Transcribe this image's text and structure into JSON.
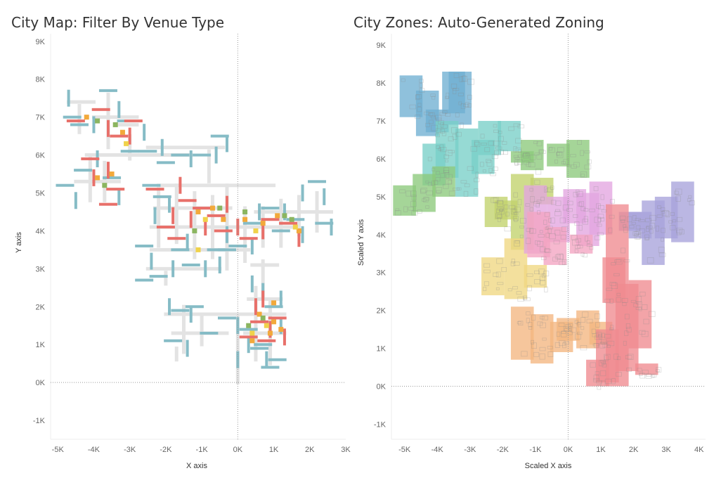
{
  "chart_data": [
    {
      "type": "scatter",
      "title": "City Map: Filter By Venue Type",
      "xlabel": "X axis",
      "ylabel": "Y axis",
      "xlim": [
        -5200,
        3000
      ],
      "ylim": [
        -1500,
        9200
      ],
      "x_ticks": [
        -5000,
        -4000,
        -3000,
        -2000,
        -1000,
        0,
        1000,
        2000,
        3000
      ],
      "x_tick_labels": [
        "-5K",
        "-4K",
        "-3K",
        "-2K",
        "-1K",
        "0K",
        "1K",
        "2K",
        "3K"
      ],
      "y_ticks": [
        9000,
        8000,
        7000,
        6000,
        5000,
        4000,
        3000,
        2000,
        1000,
        0,
        -1000
      ],
      "y_tick_labels": [
        "9K",
        "8K",
        "7K",
        "6K",
        "5K",
        "4K",
        "3K",
        "2K",
        "1K",
        "0K",
        "-1K"
      ],
      "reference_lines": {
        "x": 0,
        "y": 0
      },
      "grid": false,
      "colors": {
        "road": "#e3e3e3",
        "cyan": "#86bcc6",
        "red": "#e8706a",
        "orange": "#f2a93b",
        "green": "#8bb560",
        "yellow": "#f0d24a"
      },
      "series": [
        {
          "color": "cyan",
          "points": [
            [
              -4.7,
              7.5,
              "v"
            ],
            [
              -4.6,
              7.0,
              "h"
            ],
            [
              -4.4,
              6.8,
              "h"
            ],
            [
              -4.0,
              6.8,
              "v"
            ],
            [
              -3.6,
              7.7,
              "h"
            ],
            [
              -3.3,
              7.2,
              "v"
            ],
            [
              -3.1,
              6.9,
              "h"
            ],
            [
              -3.0,
              6.1,
              "h"
            ],
            [
              -2.6,
              6.6,
              "v"
            ],
            [
              -2.5,
              6.1,
              "h"
            ],
            [
              -2.1,
              6.2,
              "v"
            ],
            [
              -2.0,
              5.8,
              "h"
            ],
            [
              -1.6,
              6.0,
              "h"
            ],
            [
              -1.3,
              5.9,
              "v"
            ],
            [
              -1.0,
              6.0,
              "h"
            ],
            [
              -0.6,
              6.0,
              "v"
            ],
            [
              -0.5,
              6.5,
              "h"
            ],
            [
              -0.3,
              6.3,
              "v"
            ],
            [
              -4.8,
              5.2,
              "h"
            ],
            [
              -4.5,
              4.8,
              "v"
            ],
            [
              -4.3,
              5.6,
              "h"
            ],
            [
              -3.9,
              5.9,
              "v"
            ],
            [
              -3.5,
              5.4,
              "h"
            ],
            [
              -3.3,
              4.9,
              "v"
            ],
            [
              -2.4,
              5.2,
              "h"
            ],
            [
              -2.3,
              4.4,
              "v"
            ],
            [
              -2.1,
              4.9,
              "h"
            ],
            [
              -1.9,
              4.7,
              "v"
            ],
            [
              -2.6,
              3.6,
              "h"
            ],
            [
              -2.4,
              3.2,
              "v"
            ],
            [
              -2.2,
              2.8,
              "h"
            ],
            [
              -2.6,
              2.7,
              "h"
            ],
            [
              -1.8,
              3.0,
              "v"
            ],
            [
              -1.6,
              3.5,
              "h"
            ],
            [
              -1.4,
              3.7,
              "v"
            ],
            [
              -1.3,
              3.1,
              "h"
            ],
            [
              -0.9,
              3.0,
              "v"
            ],
            [
              -0.6,
              3.5,
              "h"
            ],
            [
              -0.5,
              3.1,
              "v"
            ],
            [
              -0.3,
              3.5,
              "h"
            ],
            [
              -0.3,
              3.9,
              "v"
            ],
            [
              0.0,
              3.6,
              "h"
            ],
            [
              0.4,
              3.6,
              "v"
            ],
            [
              0.4,
              4.2,
              "h"
            ],
            [
              0.6,
              4.5,
              "v"
            ],
            [
              0.9,
              4.6,
              "h"
            ],
            [
              1.3,
              4.5,
              "v"
            ],
            [
              1.2,
              4.0,
              "h"
            ],
            [
              1.8,
              3.9,
              "v"
            ],
            [
              1.6,
              4.3,
              "h"
            ],
            [
              1.8,
              5.0,
              "v"
            ],
            [
              2.2,
              5.3,
              "h"
            ],
            [
              2.4,
              4.9,
              "v"
            ],
            [
              2.4,
              4.2,
              "h"
            ],
            [
              2.6,
              4.1,
              "v"
            ],
            [
              -1.9,
              2.0,
              "v"
            ],
            [
              -1.6,
              1.9,
              "h"
            ],
            [
              -1.3,
              1.8,
              "v"
            ],
            [
              -1.2,
              2.0,
              "h"
            ],
            [
              -1.8,
              1.1,
              "h"
            ],
            [
              -1.4,
              0.9,
              "v"
            ],
            [
              -0.8,
              1.3,
              "h"
            ],
            [
              -0.3,
              1.7,
              "h"
            ],
            [
              0.0,
              1.5,
              "v"
            ],
            [
              0.3,
              1.4,
              "h"
            ],
            [
              0.3,
              1.0,
              "v"
            ],
            [
              0.0,
              0.6,
              "v"
            ],
            [
              0.6,
              0.9,
              "h"
            ],
            [
              0.8,
              0.6,
              "v"
            ],
            [
              0.7,
              1.0,
              "h"
            ],
            [
              1.1,
              0.6,
              "h"
            ],
            [
              1.2,
              1.5,
              "v"
            ],
            [
              0.9,
              0.4,
              "h"
            ],
            [
              0.4,
              2.6,
              "v"
            ],
            [
              0.7,
              2.4,
              "v"
            ],
            [
              1.0,
              2.0,
              "h"
            ],
            [
              1.2,
              2.2,
              "v"
            ]
          ]
        },
        {
          "color": "red",
          "points": [
            [
              -4.5,
              6.9,
              "h"
            ],
            [
              -3.8,
              7.2,
              "h"
            ],
            [
              -3.6,
              6.7,
              "v"
            ],
            [
              -3.3,
              6.5,
              "h"
            ],
            [
              -3.0,
              6.5,
              "v"
            ],
            [
              -2.9,
              6.9,
              "h"
            ],
            [
              -4.1,
              5.9,
              "h"
            ],
            [
              -4.0,
              5.4,
              "v"
            ],
            [
              -3.6,
              5.6,
              "v"
            ],
            [
              -3.4,
              5.1,
              "h"
            ],
            [
              -3.6,
              4.7,
              "h"
            ],
            [
              -2.3,
              5.1,
              "h"
            ],
            [
              -1.6,
              5.2,
              "v"
            ],
            [
              -1.4,
              4.8,
              "h"
            ],
            [
              -1.3,
              4.3,
              "v"
            ],
            [
              -1.0,
              4.6,
              "h"
            ],
            [
              -0.9,
              4.1,
              "v"
            ],
            [
              -0.6,
              4.4,
              "h"
            ],
            [
              -0.4,
              4.0,
              "h"
            ],
            [
              -0.3,
              4.7,
              "v"
            ],
            [
              -1.8,
              4.4,
              "v"
            ],
            [
              -2.0,
              4.1,
              "h"
            ],
            [
              -1.7,
              3.8,
              "h"
            ],
            [
              0.0,
              4.1,
              "v"
            ],
            [
              0.3,
              3.8,
              "h"
            ],
            [
              0.7,
              4.0,
              "v"
            ],
            [
              0.9,
              4.3,
              "h"
            ],
            [
              1.4,
              4.2,
              "h"
            ],
            [
              1.7,
              3.8,
              "v"
            ],
            [
              0.5,
              2.0,
              "v"
            ],
            [
              0.6,
              1.6,
              "h"
            ],
            [
              0.9,
              1.4,
              "v"
            ],
            [
              1.1,
              1.7,
              "h"
            ],
            [
              0.3,
              1.2,
              "h"
            ],
            [
              0.8,
              1.1,
              "h"
            ],
            [
              1.3,
              1.2,
              "v"
            ],
            [
              0.7,
              2.2,
              "v"
            ]
          ]
        },
        {
          "color": "orange",
          "points": [
            [
              -4.2,
              7.0
            ],
            [
              -3.2,
              6.6
            ],
            [
              -3.9,
              5.4
            ],
            [
              -3.5,
              5.5
            ],
            [
              -1.1,
              4.5
            ],
            [
              -0.7,
              4.6
            ],
            [
              -0.4,
              4.3
            ],
            [
              0.2,
              4.3
            ],
            [
              0.7,
              4.2
            ],
            [
              1.1,
              4.4
            ],
            [
              1.7,
              4.0
            ],
            [
              0.6,
              1.8
            ],
            [
              1.0,
              1.6
            ],
            [
              0.9,
              1.3
            ],
            [
              0.4,
              1.1
            ],
            [
              1.2,
              1.4
            ],
            [
              1.0,
              2.1
            ]
          ]
        },
        {
          "color": "green",
          "points": [
            [
              -3.9,
              6.9
            ],
            [
              -3.4,
              6.8
            ],
            [
              -3.7,
              5.2
            ],
            [
              -1.2,
              4.0
            ],
            [
              -0.5,
              4.6
            ],
            [
              0.2,
              4.5
            ],
            [
              1.3,
              4.4
            ],
            [
              1.5,
              4.3
            ],
            [
              0.7,
              1.7
            ],
            [
              0.3,
              1.5
            ]
          ]
        },
        {
          "color": "yellow",
          "points": [
            [
              -3.1,
              6.3
            ],
            [
              -1.1,
              3.5
            ],
            [
              -0.9,
              4.3
            ],
            [
              0.5,
              4.0
            ],
            [
              1.6,
              4.1
            ],
            [
              0.8,
              1.5
            ],
            [
              0.4,
              1.3
            ]
          ]
        }
      ]
    },
    {
      "type": "scatter",
      "title": "City Zones: Auto-Generated Zoning",
      "xlabel": "Scaled X axis",
      "ylabel": "Scaled Y axis",
      "xlim": [
        -5400,
        4200
      ],
      "ylim": [
        -1400,
        9300
      ],
      "x_ticks": [
        -5000,
        -4000,
        -3000,
        -2000,
        -1000,
        0,
        1000,
        2000,
        3000,
        4000
      ],
      "x_tick_labels": [
        "-5K",
        "-4K",
        "-3K",
        "-2K",
        "-1K",
        "0K",
        "1K",
        "2K",
        "3K",
        "4K"
      ],
      "y_ticks": [
        9000,
        8000,
        7000,
        6000,
        5000,
        4000,
        3000,
        2000,
        1000,
        0,
        -1000
      ],
      "y_tick_labels": [
        "9K",
        "8K",
        "7K",
        "6K",
        "5K",
        "4K",
        "3K",
        "2K",
        "1K",
        "0K",
        "-1K"
      ],
      "reference_lines": {
        "x": 0,
        "y": 0
      },
      "grid": false,
      "zones": [
        {
          "color": "#6fb0d2",
          "blocks": [
            [
              -4.8,
              7.1,
              8.2
            ],
            [
              -4.3,
              6.6,
              7.8
            ],
            [
              -3.5,
              7.2,
              8.3
            ],
            [
              -3.3,
              6.9,
              8.3
            ],
            [
              -4.0,
              6.7,
              7.3
            ]
          ]
        },
        {
          "color": "#79cfc8",
          "blocks": [
            [
              -4.1,
              5.3,
              6.4
            ],
            [
              -3.7,
              5.5,
              7.0
            ],
            [
              -3.1,
              5.0,
              6.8
            ],
            [
              -2.4,
              6.1,
              7.0
            ],
            [
              -1.8,
              6.2,
              7.0
            ],
            [
              -2.6,
              5.6,
              6.5
            ]
          ]
        },
        {
          "color": "#8cc97b",
          "blocks": [
            [
              -5.0,
              4.5,
              5.3
            ],
            [
              -4.4,
              4.6,
              5.6
            ],
            [
              -3.8,
              5.0,
              5.8
            ],
            [
              -1.1,
              5.7,
              6.5
            ],
            [
              -0.3,
              5.8,
              6.4
            ],
            [
              0.3,
              5.5,
              6.5
            ],
            [
              -1.4,
              5.9,
              6.2
            ]
          ]
        },
        {
          "color": "#c1d26c",
          "blocks": [
            [
              -2.2,
              4.2,
              5.0
            ],
            [
              -1.4,
              3.6,
              5.6
            ],
            [
              -0.8,
              4.8,
              5.5
            ],
            [
              -1.9,
              4.4,
              4.9
            ]
          ]
        },
        {
          "color": "#f0d781",
          "blocks": [
            [
              -2.3,
              2.4,
              3.4
            ],
            [
              -1.6,
              2.3,
              3.9
            ],
            [
              -1.0,
              2.6,
              3.2
            ]
          ]
        },
        {
          "color": "#e3a5e0",
          "blocks": [
            [
              -1.0,
              3.5,
              5.3
            ],
            [
              -0.3,
              3.8,
              5.0
            ],
            [
              0.6,
              3.7,
              5.1
            ],
            [
              1.0,
              4.0,
              5.4
            ],
            [
              0.2,
              4.3,
              5.2
            ]
          ]
        },
        {
          "color": "#f4a4c1",
          "blocks": [
            [
              -0.9,
              3.4,
              4.6
            ],
            [
              -0.4,
              3.2,
              4.2
            ],
            [
              0.4,
              3.5,
              4.0
            ]
          ]
        },
        {
          "color": "#a8a3db",
          "blocks": [
            [
              1.9,
              4.1,
              4.6
            ],
            [
              2.6,
              3.2,
              4.9
            ],
            [
              3.0,
              3.9,
              5.0
            ],
            [
              3.5,
              3.8,
              5.4
            ],
            [
              2.2,
              3.9,
              4.6
            ]
          ]
        },
        {
          "color": "#f4b680",
          "blocks": [
            [
              -1.4,
              0.7,
              2.1
            ],
            [
              -0.8,
              0.6,
              1.9
            ],
            [
              -0.2,
              0.9,
              1.7
            ],
            [
              0.6,
              1.0,
              2.0
            ],
            [
              1.0,
              1.1,
              1.7
            ],
            [
              0.0,
              1.2,
              1.8
            ]
          ]
        },
        {
          "color": "#ef8a8f",
          "blocks": [
            [
              1.5,
              0.0,
              4.8
            ],
            [
              1.8,
              0.4,
              2.7
            ],
            [
              2.2,
              1.0,
              2.8
            ],
            [
              1.2,
              0.1,
              1.5
            ],
            [
              0.9,
              0.0,
              0.7
            ],
            [
              2.4,
              0.3,
              0.6
            ],
            [
              1.4,
              2.2,
              3.4
            ]
          ]
        }
      ]
    }
  ]
}
